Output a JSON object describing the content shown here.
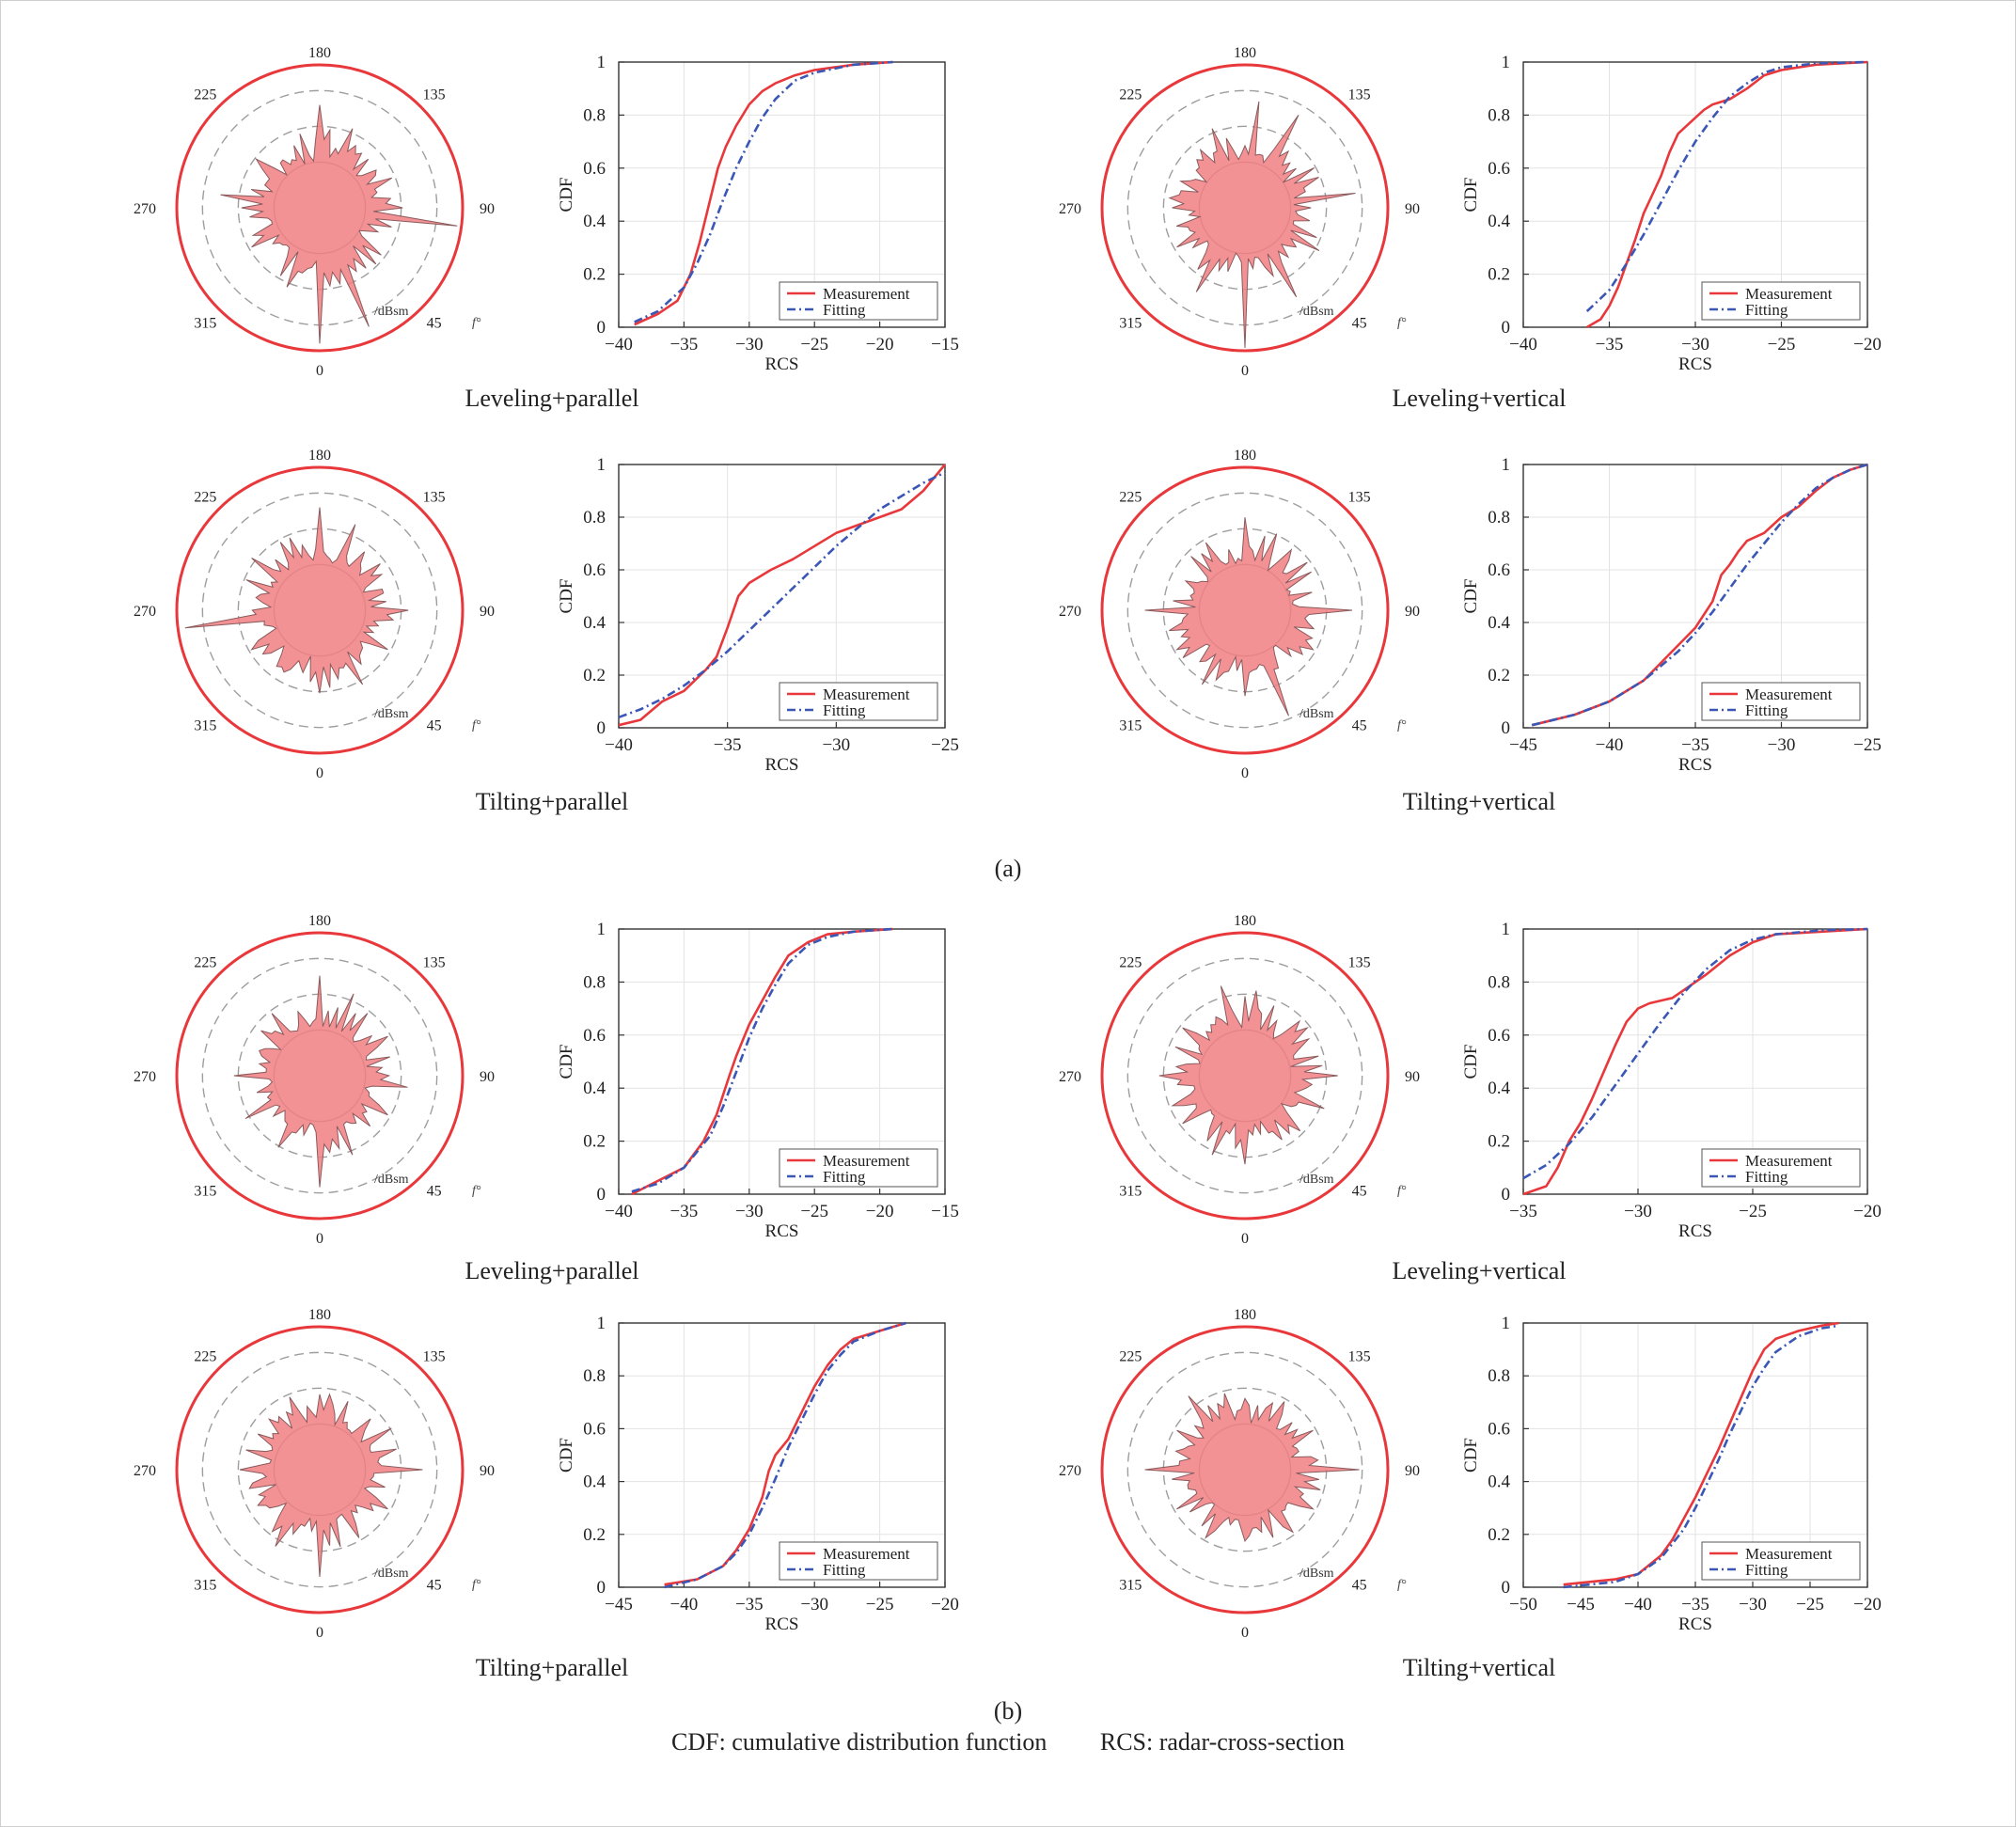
{
  "figure": {
    "group_labels": [
      "(a)",
      "(b)"
    ],
    "footnote": {
      "cdf": "CDF: cumulative distribution function",
      "rcs": "RCS: radar-cross-section"
    }
  },
  "polar_common": {
    "angle_labels": [
      "180",
      "135",
      "90",
      "45",
      "0",
      "315",
      "270",
      "225"
    ],
    "unit_label": "/dBsm",
    "angle_symbol": "f°",
    "colors": {
      "outer_ring": "#e8383b",
      "fill": "#f17f83",
      "grid": "#9e9e9e"
    }
  },
  "cdf_common": {
    "xlabel": "RCS",
    "ylabel": "CDF",
    "legend": [
      "Measurement",
      "Fitting"
    ],
    "colors": {
      "measurement": "#e8383b",
      "fitting": "#3a57b5"
    }
  },
  "chart_data": [
    {
      "type": "line",
      "panel": "a-1",
      "caption": "Leveling+parallel",
      "xlim": [
        -40,
        -15
      ],
      "ylim": [
        0,
        1
      ],
      "xticks": [
        -40,
        -35,
        -30,
        -25,
        -20,
        -15
      ],
      "yticks": [
        0,
        0.2,
        0.4,
        0.6,
        0.8,
        1
      ],
      "series": [
        {
          "name": "Measurement",
          "x": [
            -38.8,
            -37,
            -35.5,
            -34.5,
            -33.8,
            -33,
            -32.4,
            -31.8,
            -31,
            -30,
            -29,
            -28,
            -26.5,
            -25,
            -22,
            -19
          ],
          "y": [
            0.01,
            0.05,
            0.1,
            0.2,
            0.32,
            0.48,
            0.6,
            0.68,
            0.76,
            0.84,
            0.89,
            0.92,
            0.95,
            0.97,
            0.99,
            1.0
          ]
        },
        {
          "name": "Fitting",
          "x": [
            -38.8,
            -37,
            -35,
            -34,
            -33,
            -32,
            -31,
            -30,
            -29,
            -28,
            -26.5,
            -25,
            -22,
            -19
          ],
          "y": [
            0.02,
            0.06,
            0.15,
            0.24,
            0.35,
            0.48,
            0.6,
            0.7,
            0.79,
            0.86,
            0.93,
            0.96,
            0.99,
            1.0
          ]
        }
      ]
    },
    {
      "type": "line",
      "panel": "a-2",
      "caption": "Leveling+vertical",
      "xlim": [
        -40,
        -20
      ],
      "ylim": [
        0,
        1
      ],
      "xticks": [
        -40,
        -35,
        -30,
        -25,
        -20
      ],
      "yticks": [
        0,
        0.2,
        0.4,
        0.6,
        0.8,
        1
      ],
      "series": [
        {
          "name": "Measurement",
          "x": [
            -36.3,
            -35.5,
            -35,
            -34.5,
            -34,
            -33.5,
            -33,
            -32.5,
            -32,
            -31.5,
            -31,
            -30.5,
            -30,
            -29.5,
            -29,
            -28,
            -27,
            -26,
            -25,
            -23,
            -20
          ],
          "y": [
            0.0,
            0.03,
            0.08,
            0.15,
            0.24,
            0.33,
            0.43,
            0.5,
            0.57,
            0.66,
            0.73,
            0.76,
            0.79,
            0.82,
            0.84,
            0.86,
            0.9,
            0.95,
            0.97,
            0.99,
            1.0
          ]
        },
        {
          "name": "Fitting",
          "x": [
            -36.3,
            -35,
            -34,
            -33,
            -32,
            -31,
            -30,
            -29,
            -28,
            -27,
            -26,
            -25,
            -23,
            -20
          ],
          "y": [
            0.06,
            0.14,
            0.24,
            0.35,
            0.47,
            0.59,
            0.7,
            0.79,
            0.87,
            0.92,
            0.96,
            0.98,
            0.995,
            1.0
          ]
        }
      ]
    },
    {
      "type": "line",
      "panel": "a-3",
      "caption": "Tilting+parallel",
      "xlim": [
        -40,
        -25
      ],
      "ylim": [
        0,
        1
      ],
      "xticks": [
        -40,
        -35,
        -30,
        -25
      ],
      "yticks": [
        0,
        0.2,
        0.4,
        0.6,
        0.8,
        1
      ],
      "series": [
        {
          "name": "Measurement",
          "x": [
            -40,
            -39,
            -38,
            -37,
            -36,
            -35.5,
            -35,
            -34.5,
            -34,
            -33,
            -32,
            -31,
            -30,
            -29,
            -28,
            -27,
            -26,
            -25
          ],
          "y": [
            0.01,
            0.03,
            0.1,
            0.14,
            0.22,
            0.27,
            0.38,
            0.5,
            0.55,
            0.6,
            0.64,
            0.69,
            0.74,
            0.77,
            0.8,
            0.83,
            0.9,
            1.0
          ]
        },
        {
          "name": "Fitting",
          "x": [
            -40,
            -39,
            -38,
            -37,
            -36,
            -35,
            -34,
            -33,
            -32,
            -31,
            -30,
            -29,
            -28,
            -27,
            -26,
            -25
          ],
          "y": [
            0.04,
            0.07,
            0.11,
            0.16,
            0.22,
            0.29,
            0.37,
            0.45,
            0.53,
            0.61,
            0.69,
            0.76,
            0.83,
            0.88,
            0.93,
            0.97
          ]
        }
      ]
    },
    {
      "type": "line",
      "panel": "a-4",
      "caption": "Tilting+vertical",
      "xlim": [
        -45,
        -25
      ],
      "ylim": [
        0,
        1
      ],
      "xticks": [
        -45,
        -40,
        -35,
        -30,
        -25
      ],
      "yticks": [
        0,
        0.2,
        0.4,
        0.6,
        0.8,
        1
      ],
      "series": [
        {
          "name": "Measurement",
          "x": [
            -44.5,
            -42,
            -40,
            -38,
            -36.5,
            -35,
            -34,
            -33.5,
            -33,
            -32.5,
            -32,
            -31,
            -30,
            -29,
            -28,
            -27,
            -26,
            -25
          ],
          "y": [
            0.01,
            0.05,
            0.1,
            0.18,
            0.28,
            0.38,
            0.48,
            0.58,
            0.62,
            0.67,
            0.71,
            0.74,
            0.8,
            0.84,
            0.9,
            0.95,
            0.98,
            1.0
          ]
        },
        {
          "name": "Fitting",
          "x": [
            -44.5,
            -42,
            -40,
            -38,
            -36,
            -35,
            -34,
            -33,
            -32,
            -31,
            -30,
            -29,
            -28,
            -27,
            -26,
            -25
          ],
          "y": [
            0.01,
            0.05,
            0.1,
            0.18,
            0.29,
            0.36,
            0.44,
            0.53,
            0.62,
            0.7,
            0.78,
            0.85,
            0.91,
            0.95,
            0.98,
            1.0
          ]
        }
      ]
    },
    {
      "type": "line",
      "panel": "b-1",
      "caption": "Leveling+parallel",
      "xlim": [
        -40,
        -15
      ],
      "ylim": [
        0,
        1
      ],
      "xticks": [
        -40,
        -35,
        -30,
        -25,
        -20,
        -15
      ],
      "yticks": [
        0,
        0.2,
        0.4,
        0.6,
        0.8,
        1
      ],
      "series": [
        {
          "name": "Measurement",
          "x": [
            -39,
            -37,
            -35,
            -33.5,
            -32.5,
            -31.5,
            -31,
            -30,
            -29,
            -28,
            -27,
            -25.5,
            -24,
            -22,
            -19
          ],
          "y": [
            0.0,
            0.05,
            0.1,
            0.2,
            0.3,
            0.45,
            0.52,
            0.64,
            0.73,
            0.82,
            0.9,
            0.95,
            0.98,
            0.99,
            1.0
          ]
        },
        {
          "name": "Fitting",
          "x": [
            -39,
            -37,
            -35,
            -33,
            -32,
            -31,
            -30,
            -29,
            -28,
            -27,
            -25.5,
            -24,
            -22,
            -19
          ],
          "y": [
            0.01,
            0.04,
            0.1,
            0.22,
            0.33,
            0.46,
            0.59,
            0.7,
            0.79,
            0.87,
            0.94,
            0.97,
            0.99,
            1.0
          ]
        }
      ]
    },
    {
      "type": "line",
      "panel": "b-2",
      "caption": "Leveling+vertical",
      "xlim": [
        -35,
        -20
      ],
      "ylim": [
        0,
        1
      ],
      "xticks": [
        -35,
        -30,
        -25,
        -20
      ],
      "yticks": [
        0,
        0.2,
        0.4,
        0.6,
        0.8,
        1
      ],
      "series": [
        {
          "name": "Measurement",
          "x": [
            -35,
            -34,
            -33.5,
            -33,
            -32.5,
            -32,
            -31.5,
            -31,
            -30.5,
            -30,
            -29.5,
            -29,
            -28.5,
            -28,
            -27,
            -26,
            -25,
            -24,
            -22,
            -20
          ],
          "y": [
            0.0,
            0.03,
            0.1,
            0.2,
            0.27,
            0.36,
            0.46,
            0.56,
            0.65,
            0.7,
            0.72,
            0.73,
            0.74,
            0.77,
            0.83,
            0.9,
            0.95,
            0.98,
            0.99,
            1.0
          ]
        },
        {
          "name": "Fitting",
          "x": [
            -35,
            -34,
            -33,
            -32,
            -31,
            -30,
            -29,
            -28,
            -27,
            -26,
            -25,
            -24,
            -22,
            -20
          ],
          "y": [
            0.06,
            0.11,
            0.19,
            0.29,
            0.41,
            0.53,
            0.65,
            0.76,
            0.85,
            0.92,
            0.96,
            0.98,
            0.995,
            1.0
          ]
        }
      ]
    },
    {
      "type": "line",
      "panel": "b-3",
      "caption": "Tilting+parallel",
      "xlim": [
        -45,
        -20
      ],
      "ylim": [
        0,
        1
      ],
      "xticks": [
        -45,
        -40,
        -35,
        -30,
        -25,
        -20
      ],
      "yticks": [
        0,
        0.2,
        0.4,
        0.6,
        0.8,
        1
      ],
      "series": [
        {
          "name": "Measurement",
          "x": [
            -41.5,
            -39,
            -37,
            -36,
            -35,
            -34,
            -33.5,
            -33,
            -32,
            -31,
            -30,
            -29,
            -28,
            -27,
            -25,
            -23
          ],
          "y": [
            0.01,
            0.03,
            0.08,
            0.14,
            0.22,
            0.34,
            0.44,
            0.5,
            0.56,
            0.66,
            0.76,
            0.84,
            0.9,
            0.94,
            0.97,
            1.0
          ]
        },
        {
          "name": "Fitting",
          "x": [
            -41.5,
            -39,
            -37,
            -36,
            -35,
            -34,
            -33,
            -32,
            -31,
            -30,
            -29,
            -28,
            -27,
            -25,
            -23
          ],
          "y": [
            0.0,
            0.03,
            0.08,
            0.13,
            0.2,
            0.3,
            0.41,
            0.53,
            0.63,
            0.73,
            0.82,
            0.88,
            0.93,
            0.97,
            1.0
          ]
        }
      ]
    },
    {
      "type": "line",
      "panel": "b-4",
      "caption": "Tilting+vertical",
      "xlim": [
        -50,
        -20
      ],
      "ylim": [
        0,
        1
      ],
      "xticks": [
        -50,
        -45,
        -40,
        -35,
        -30,
        -25,
        -20
      ],
      "yticks": [
        0,
        0.2,
        0.4,
        0.6,
        0.8,
        1
      ],
      "series": [
        {
          "name": "Measurement",
          "x": [
            -46.5,
            -42,
            -40,
            -38,
            -37,
            -36,
            -35,
            -34,
            -33,
            -32,
            -31,
            -30,
            -29,
            -28,
            -26,
            -24,
            -22.5
          ],
          "y": [
            0.01,
            0.03,
            0.05,
            0.12,
            0.18,
            0.26,
            0.34,
            0.43,
            0.52,
            0.62,
            0.72,
            0.82,
            0.9,
            0.94,
            0.97,
            0.99,
            1.0
          ]
        },
        {
          "name": "Fitting",
          "x": [
            -46.5,
            -42,
            -40,
            -38,
            -36,
            -35,
            -34,
            -33,
            -32,
            -31,
            -30,
            -29,
            -28,
            -26,
            -24,
            -22.5
          ],
          "y": [
            0.0,
            0.02,
            0.05,
            0.11,
            0.22,
            0.3,
            0.39,
            0.48,
            0.58,
            0.67,
            0.76,
            0.83,
            0.89,
            0.95,
            0.98,
            0.99
          ]
        }
      ]
    }
  ]
}
